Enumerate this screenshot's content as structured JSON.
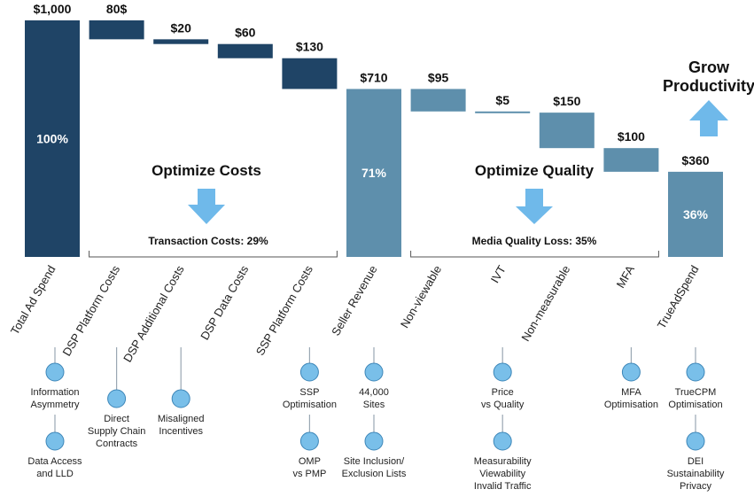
{
  "colors": {
    "cost_dark": "#1f4466",
    "quality_light": "#5e8fac",
    "arrow": "#6fb9ea",
    "node_fill": "#79bfe9",
    "node_stroke": "#3d86b8",
    "stem": "#9aa7b3",
    "bracket": "#555555"
  },
  "chart_data": {
    "type": "waterfall",
    "title": "",
    "ylim": [
      0,
      1000
    ],
    "bars": [
      {
        "category": "Total Ad Spend",
        "value_label": "$1,000",
        "kind": "total",
        "start": 0,
        "end": 1000,
        "pct_label": "100%",
        "color": "cost_dark"
      },
      {
        "category": "DSP Platform Costs",
        "value_label": "80$",
        "kind": "decrease",
        "start": 920,
        "end": 1000,
        "pct_label": "",
        "color": "cost_dark"
      },
      {
        "category": "DSP Additional Costs",
        "value_label": "$20",
        "kind": "decrease",
        "start": 900,
        "end": 920,
        "pct_label": "",
        "color": "cost_dark"
      },
      {
        "category": "DSP Data Costs",
        "value_label": "$60",
        "kind": "decrease",
        "start": 840,
        "end": 900,
        "pct_label": "",
        "color": "cost_dark"
      },
      {
        "category": "SSP Platform Costs",
        "value_label": "$130",
        "kind": "decrease",
        "start": 710,
        "end": 840,
        "pct_label": "",
        "color": "cost_dark"
      },
      {
        "category": "Seller Revenue",
        "value_label": "$710",
        "kind": "total",
        "start": 0,
        "end": 710,
        "pct_label": "71%",
        "color": "quality_light"
      },
      {
        "category": "Non-viewable",
        "value_label": "$95",
        "kind": "decrease",
        "start": 615,
        "end": 710,
        "pct_label": "",
        "color": "quality_light"
      },
      {
        "category": "IVT",
        "value_label": "$5",
        "kind": "decrease",
        "start": 610,
        "end": 615,
        "pct_label": "",
        "color": "quality_light"
      },
      {
        "category": "Non-measurable",
        "value_label": "$150",
        "kind": "decrease",
        "start": 460,
        "end": 610,
        "pct_label": "",
        "color": "quality_light"
      },
      {
        "category": "MFA",
        "value_label": "$100",
        "kind": "decrease",
        "start": 360,
        "end": 460,
        "pct_label": "",
        "color": "quality_light"
      },
      {
        "category": "TrueAdSpend",
        "value_label": "$360",
        "kind": "total",
        "start": 0,
        "end": 360,
        "pct_label": "36%",
        "color": "quality_light"
      }
    ],
    "annotations": {
      "optimize_costs": "Optimize Costs",
      "optimize_quality": "Optimize Quality",
      "transaction_costs": "Transaction Costs: 29%",
      "media_quality_loss": "Media Quality Loss: 35%",
      "grow_line1": "Grow",
      "grow_line2": "Productivity"
    },
    "drivers": [
      {
        "bar": 0,
        "row": 1,
        "lines": [
          "Information",
          "Asymmetry"
        ]
      },
      {
        "bar": 0,
        "row": 2,
        "lines": [
          "Data Access",
          "and LLD"
        ]
      },
      {
        "bar": 1,
        "row": 1,
        "lines": [
          "Direct",
          "Supply Chain",
          "Contracts"
        ]
      },
      {
        "bar": 2,
        "row": 1,
        "lines": [
          "Misaligned",
          "Incentives"
        ]
      },
      {
        "bar": 4,
        "row": 1,
        "lines": [
          "SSP",
          "Optimisation"
        ]
      },
      {
        "bar": 4,
        "row": 2,
        "lines": [
          "OMP",
          "vs PMP"
        ]
      },
      {
        "bar": 5,
        "row": 1,
        "lines": [
          "44,000",
          "Sites"
        ]
      },
      {
        "bar": 5,
        "row": 2,
        "lines": [
          "Site Inclusion/",
          "Exclusion Lists"
        ]
      },
      {
        "bar": 7,
        "row": 1,
        "lines": [
          "Price",
          "vs Quality"
        ]
      },
      {
        "bar": 7,
        "row": 2,
        "lines": [
          "Measurability",
          "Viewability",
          "Invalid Traffic"
        ]
      },
      {
        "bar": 9,
        "row": 1,
        "lines": [
          "MFA",
          "Optimisation"
        ]
      },
      {
        "bar": 10,
        "row": 1,
        "lines": [
          "TrueCPM",
          "Optimisation"
        ]
      },
      {
        "bar": 10,
        "row": 2,
        "lines": [
          "DEI",
          "Sustainability",
          "Privacy"
        ]
      }
    ]
  }
}
